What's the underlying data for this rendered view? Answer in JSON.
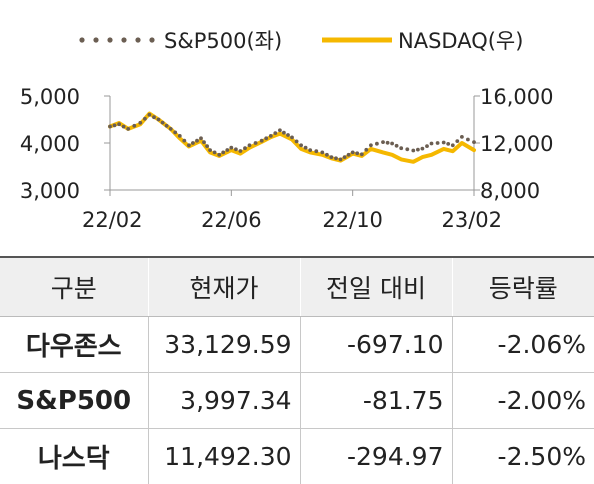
{
  "chart_data": {
    "type": "line",
    "title": "",
    "xlabel": "",
    "ylabel_left": "",
    "ylabel_right": "",
    "x_ticks": [
      "22/02",
      "22/06",
      "22/10",
      "23/02"
    ],
    "y_left_ticks": [
      "3,000",
      "4,000",
      "5,000"
    ],
    "y_right_ticks": [
      "8,000",
      "12,000",
      "16,000"
    ],
    "y_left_range": [
      3000,
      5000
    ],
    "y_right_range": [
      8000,
      16000
    ],
    "x_range": [
      0,
      12
    ],
    "legend_position": "top",
    "grid": false,
    "series": [
      {
        "name": "S&P500(좌)",
        "axis": "left",
        "style": "dotted",
        "color": "#6b5e52",
        "x": [
          0,
          0.3,
          0.6,
          1.0,
          1.3,
          1.6,
          2.0,
          2.3,
          2.6,
          3.0,
          3.3,
          3.6,
          4.0,
          4.3,
          4.6,
          5.0,
          5.3,
          5.6,
          6.0,
          6.3,
          6.6,
          7.0,
          7.3,
          7.6,
          8.0,
          8.3,
          8.6,
          9.0,
          9.3,
          9.6,
          10.0,
          10.3,
          10.6,
          11.0,
          11.3,
          11.6,
          12.0
        ],
        "y": [
          4350,
          4400,
          4300,
          4430,
          4600,
          4500,
          4300,
          4150,
          3950,
          4100,
          3850,
          3750,
          3900,
          3830,
          3950,
          4050,
          4150,
          4270,
          4120,
          3950,
          3850,
          3800,
          3700,
          3650,
          3800,
          3760,
          3950,
          4020,
          3990,
          3890,
          3840,
          3880,
          3990,
          4010,
          3950,
          4130,
          4020
        ]
      },
      {
        "name": "NASDAQ(우)",
        "axis": "right",
        "style": "solid",
        "color": "#f5b800",
        "x": [
          0,
          0.3,
          0.6,
          1.0,
          1.3,
          1.6,
          2.0,
          2.3,
          2.6,
          3.0,
          3.3,
          3.6,
          4.0,
          4.3,
          4.6,
          5.0,
          5.3,
          5.6,
          6.0,
          6.3,
          6.6,
          7.0,
          7.3,
          7.6,
          8.0,
          8.3,
          8.6,
          9.0,
          9.3,
          9.6,
          10.0,
          10.3,
          10.6,
          11.0,
          11.3,
          11.6,
          12.0
        ],
        "y": [
          13400,
          13700,
          13200,
          13600,
          14500,
          14000,
          13200,
          12400,
          11700,
          12200,
          11200,
          10900,
          11400,
          11100,
          11600,
          12100,
          12500,
          12800,
          12300,
          11500,
          11200,
          11000,
          10700,
          10500,
          11100,
          10900,
          11500,
          11200,
          11000,
          10600,
          10400,
          10800,
          11000,
          11500,
          11300,
          12000,
          11400
        ]
      }
    ]
  },
  "table": {
    "headers": [
      "구분",
      "현재가",
      "전일 대비",
      "등락률"
    ],
    "rows": [
      [
        "다우존스",
        "33,129.59",
        "-697.10",
        "-2.06%"
      ],
      [
        "S&P500",
        "3,997.34",
        "-81.75",
        "-2.00%"
      ],
      [
        "나스닥",
        "11,492.30",
        "-294.97",
        "-2.50%"
      ]
    ]
  }
}
